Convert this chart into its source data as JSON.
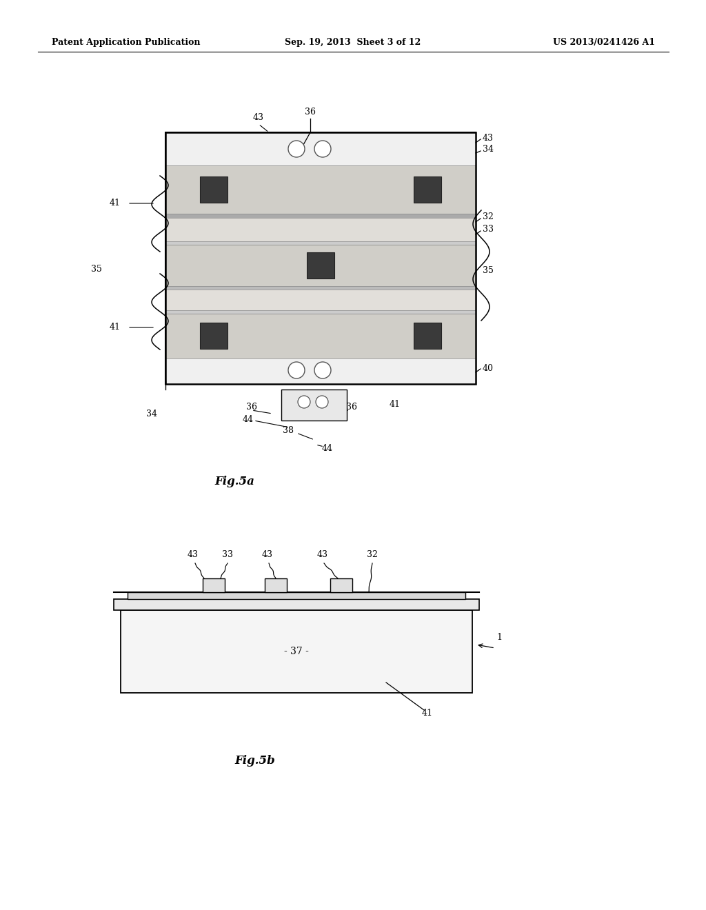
{
  "bg_color": "#ffffff",
  "header_left": "Patent Application Publication",
  "header_center": "Sep. 19, 2013  Sheet 3 of 12",
  "header_right": "US 2013/0241426 A1",
  "fig5a_label": "Fig.5a",
  "fig5b_label": "Fig.5b"
}
